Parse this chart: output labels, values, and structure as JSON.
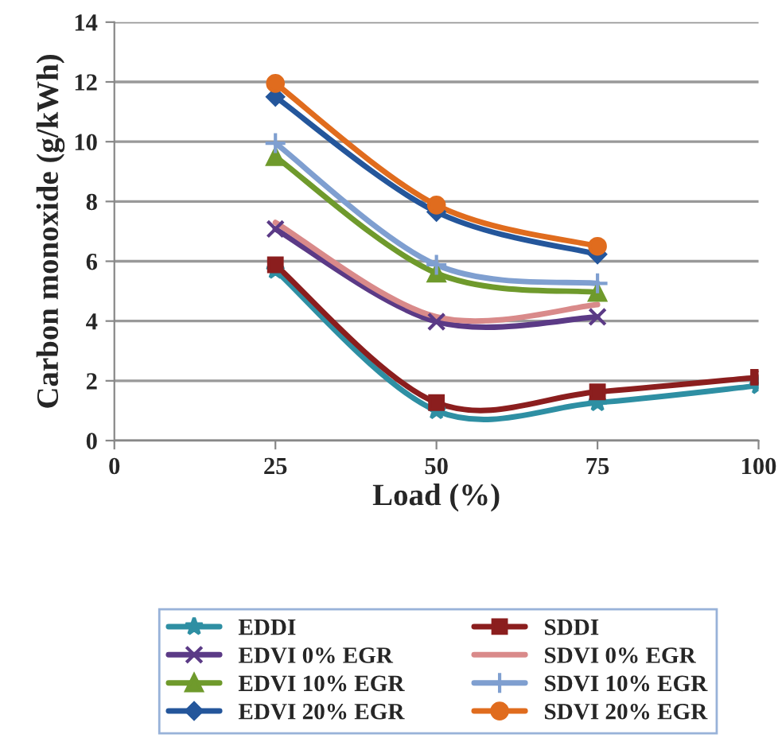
{
  "chart_data": {
    "type": "line",
    "xlabel": "Load (%)",
    "ylabel": "Carbon monoxide (g/kWh)",
    "x": [
      25,
      50,
      75,
      100
    ],
    "xlim": [
      0,
      100
    ],
    "xticks": [
      0,
      25,
      50,
      75,
      100
    ],
    "ylim": [
      0,
      14
    ],
    "yticks": [
      0,
      2,
      4,
      6,
      8,
      10,
      12,
      14
    ],
    "grid": "y",
    "legend": "bottom",
    "series": [
      {
        "name": "EDDI",
        "color": "#2e8fa3",
        "marker": "star",
        "values": [
          5.7,
          1.0,
          1.27,
          1.84
        ]
      },
      {
        "name": "SDDI",
        "color": "#8b1e1e",
        "marker": "square",
        "values": [
          5.88,
          1.27,
          1.63,
          2.12
        ]
      },
      {
        "name": "EDVI 0% EGR",
        "color": "#5b3a86",
        "marker": "cross",
        "values": [
          7.08,
          3.98,
          4.14,
          null
        ]
      },
      {
        "name": "SDVI 0% EGR",
        "color": "#d98a8a",
        "marker": "none",
        "values": [
          7.3,
          4.14,
          4.55,
          null
        ]
      },
      {
        "name": "EDVI 10% EGR",
        "color": "#6f9a2c",
        "marker": "triangle",
        "values": [
          9.5,
          5.6,
          4.96,
          null
        ]
      },
      {
        "name": "SDVI 10% EGR",
        "color": "#7f9fd0",
        "marker": "plus",
        "values": [
          9.95,
          5.88,
          5.26,
          null
        ]
      },
      {
        "name": "EDVI 20% EGR",
        "color": "#24569b",
        "marker": "diamond",
        "values": [
          11.5,
          7.65,
          6.23,
          null
        ]
      },
      {
        "name": "SDVI 20% EGR",
        "color": "#e06c1e",
        "marker": "circle",
        "values": [
          11.95,
          7.88,
          6.5,
          null
        ]
      }
    ]
  }
}
